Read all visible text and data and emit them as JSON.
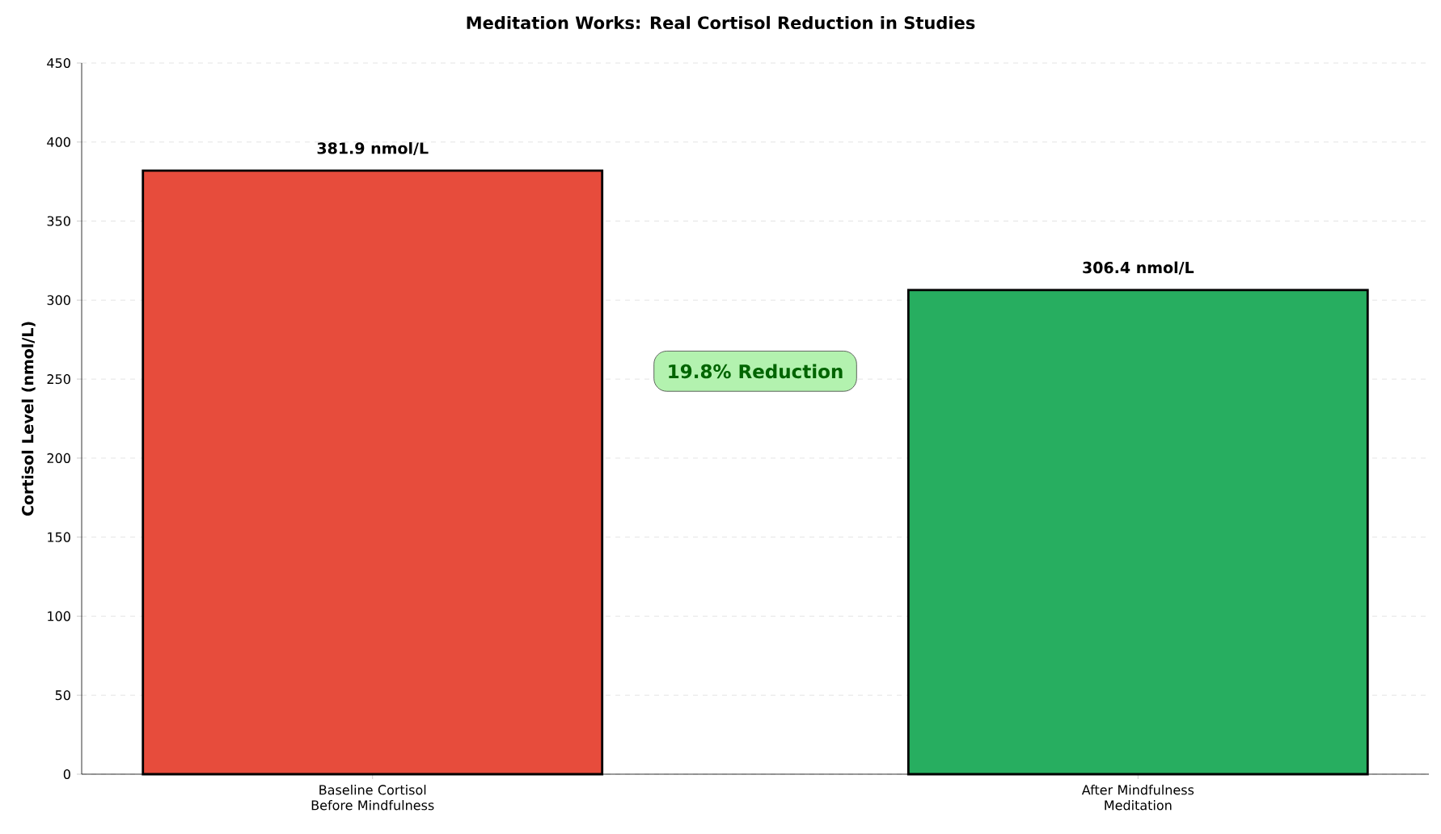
{
  "chart_data": {
    "type": "bar",
    "title": "Meditation Works: Real Cortisol Reduction in Studies",
    "ylabel": "Cortisol Level (nmol/L)",
    "categories": [
      "Baseline Cortisol Before Mindfulness",
      "After Mindfulness Meditation"
    ],
    "values": [
      381.9,
      306.4
    ],
    "colors": [
      "#e74c3c",
      "#27ae60"
    ],
    "value_labels": [
      "381.9 nmol/L",
      "306.4 nmol/L"
    ],
    "annotations": [
      "19.8% Reduction"
    ],
    "ylim": [
      0,
      450
    ],
    "yticks": [
      0,
      50,
      100,
      150,
      200,
      250,
      300,
      350,
      400,
      450
    ],
    "grid": "y"
  }
}
